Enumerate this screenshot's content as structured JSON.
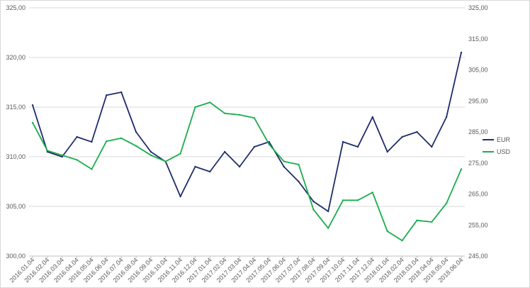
{
  "chart_data": {
    "type": "line",
    "title": "",
    "xlabel": "",
    "ylabel": "",
    "grid": true,
    "legend_position": "right",
    "x_ticks": [
      "2016.01.04",
      "2016.02.04",
      "2016.03.04",
      "2016.04.04",
      "2016.05.04",
      "2016.06.04",
      "2016.07.04",
      "2016.08.04",
      "2016.09.04",
      "2016.10.04",
      "2016.11.04",
      "2016.12.04",
      "2017.01.04",
      "2017.02.04",
      "2017.03.04",
      "2017.04.04",
      "2017.05.04",
      "2017.06.04",
      "2017.07.04",
      "2017.08.04",
      "2017.09.04",
      "2017.10.04",
      "2017.11.04",
      "2017.12.04",
      "2018.01.04",
      "2018.02.04",
      "2018.03.04",
      "2018.04.04",
      "2018.05.04",
      "2018.06.04"
    ],
    "y_left": {
      "min": 300,
      "max": 325,
      "ticks": [
        "300,00",
        "305,00",
        "310,00",
        "315,00",
        "320,00",
        "325,00"
      ]
    },
    "y_right": {
      "min": 245,
      "max": 325,
      "ticks": [
        "245,00",
        "255,00",
        "265,00",
        "275,00",
        "285,00",
        "295,00",
        "305,00",
        "315,00",
        "325,00"
      ]
    },
    "x": [
      "2016.01",
      "2016.02",
      "2016.03",
      "2016.04",
      "2016.05",
      "2016.06",
      "2016.07",
      "2016.08",
      "2016.09",
      "2016.10",
      "2016.11",
      "2016.12",
      "2017.01",
      "2017.02",
      "2017.03",
      "2017.04",
      "2017.05",
      "2017.06",
      "2017.07",
      "2017.08",
      "2017.09",
      "2017.10",
      "2017.11",
      "2017.12",
      "2018.01",
      "2018.02",
      "2018.03",
      "2018.04",
      "2018.05",
      "2018.06"
    ],
    "series": [
      {
        "name": "EUR",
        "axis": "left",
        "color": "#1f2d6b",
        "values": [
          315.2,
          310.5,
          310.0,
          312.0,
          311.5,
          316.2,
          316.5,
          312.5,
          310.5,
          309.5,
          306.0,
          309.0,
          308.5,
          310.5,
          309.0,
          311.0,
          311.5,
          309.0,
          307.5,
          305.5,
          304.5,
          311.5,
          311.0,
          314.0,
          310.5,
          312.0,
          312.5,
          311.0,
          314.0,
          320.5
        ]
      },
      {
        "name": "USD",
        "axis": "right",
        "color": "#1aad4b",
        "values": [
          288.0,
          279.0,
          277.5,
          276.0,
          273.0,
          282.0,
          283.0,
          280.5,
          277.5,
          275.5,
          278.0,
          293.0,
          294.5,
          291.0,
          290.5,
          289.5,
          281.0,
          275.5,
          274.5,
          260.0,
          254.0,
          263.0,
          263.0,
          265.5,
          253.0,
          250.0,
          256.5,
          256.0,
          262.0,
          273.0
        ]
      }
    ]
  }
}
